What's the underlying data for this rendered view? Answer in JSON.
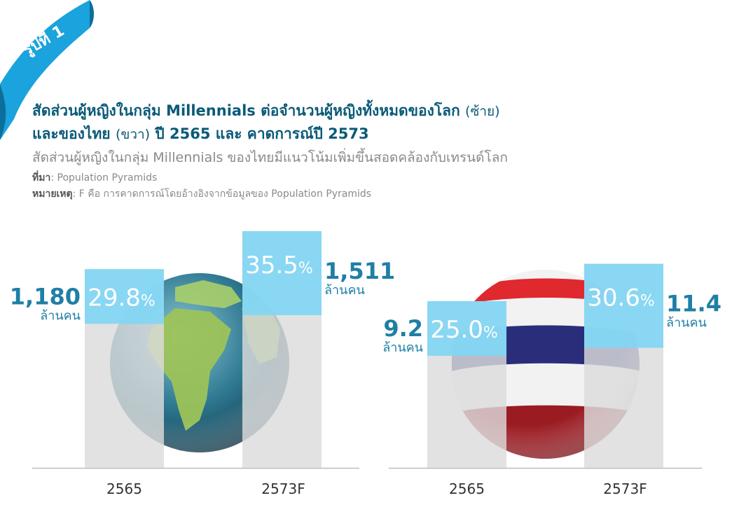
{
  "badge": "รูปที่ 1",
  "title": {
    "line1_main": "สัดส่วนผู้หญิงในกลุ่ม Millennials ต่อจำนวนผู้หญิงทั้งหมดของโลก",
    "line1_paren": "(ซ้าย)",
    "line2_pre": "และของไทย",
    "line2_paren": "(ขวา)",
    "line2_post": "ปี 2565 และ คาดการณ์ปี 2573"
  },
  "subtitle": "สัดส่วนผู้หญิงในกลุ่ม Millennials ของไทยมีแนวโน้มเพิ่มขึ้นสอดคล้องกับเทรนด์โลก",
  "notes": {
    "source_label": "ที่มา",
    "source_text": ": Population Pyramids",
    "remark_label": "หมายเหตุ",
    "remark_text": ": F คือ การคาดการณ์โดยอ้างอิงจากข้อมูลของ Population Pyramids"
  },
  "colors": {
    "title": "#0a5a78",
    "accent_blue": "#7fd6f5",
    "bar_gray": "#dcdcdc",
    "value_text": "#1f7fa6",
    "badge": "#1aa3dc"
  },
  "chart_data": [
    {
      "type": "bar",
      "categories": [
        "2565",
        "2573F"
      ],
      "series": [
        {
          "values": [
            29.8,
            35.5
          ],
          "labels": [
            "29.8%",
            "35.5%"
          ]
        },
        {
          "values": [
            1180,
            1511
          ],
          "labels": [
            "1,180",
            "1,511"
          ],
          "unit": "ล้านคน"
        }
      ],
      "background_image": "globe"
    },
    {
      "type": "bar",
      "categories": [
        "2565",
        "2573F"
      ],
      "series": [
        {
          "values": [
            25.0,
            30.6
          ],
          "labels": [
            "25.0%",
            "30.6%"
          ]
        },
        {
          "values": [
            9.2,
            11.4
          ],
          "labels": [
            "9.2",
            "11.4"
          ],
          "unit": "ล้านคน"
        }
      ],
      "background_image": "thai-flag-sphere"
    }
  ]
}
